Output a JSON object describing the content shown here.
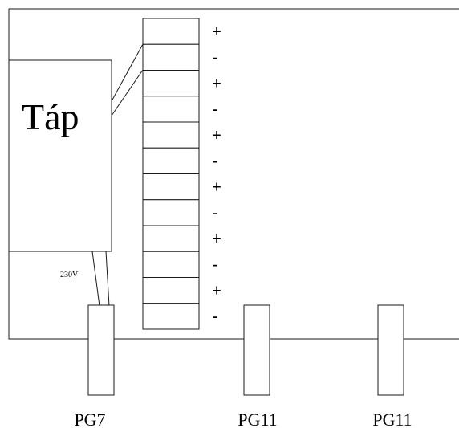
{
  "supply": {
    "label": "Táp",
    "voltage": "230V"
  },
  "terminal_block": {
    "terminals": [
      {
        "sign": "+"
      },
      {
        "sign": "-"
      },
      {
        "sign": "+"
      },
      {
        "sign": "-"
      },
      {
        "sign": "+"
      },
      {
        "sign": "-"
      },
      {
        "sign": "+"
      },
      {
        "sign": "-"
      },
      {
        "sign": "+"
      },
      {
        "sign": "-"
      },
      {
        "sign": "+"
      },
      {
        "sign": "-"
      }
    ]
  },
  "glands": [
    {
      "label": "PG7"
    },
    {
      "label": "PG11"
    },
    {
      "label": "PG11"
    }
  ]
}
